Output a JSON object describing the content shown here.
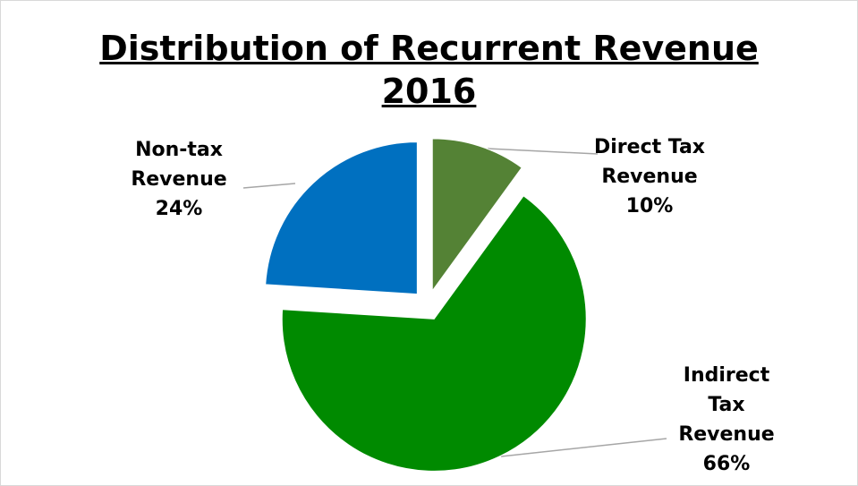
{
  "chart_data": {
    "type": "pie",
    "title": "Distribution of Recurrent Revenue",
    "subtitle": "2016",
    "categories": [
      "Direct Tax Revenue",
      "Indirect Tax Revenue",
      "Non-tax Revenue"
    ],
    "values": [
      10,
      66,
      24
    ],
    "value_labels": [
      "10%",
      "66%",
      "24%"
    ],
    "colors": [
      "#548235",
      "#008a00",
      "#0070c0"
    ]
  }
}
